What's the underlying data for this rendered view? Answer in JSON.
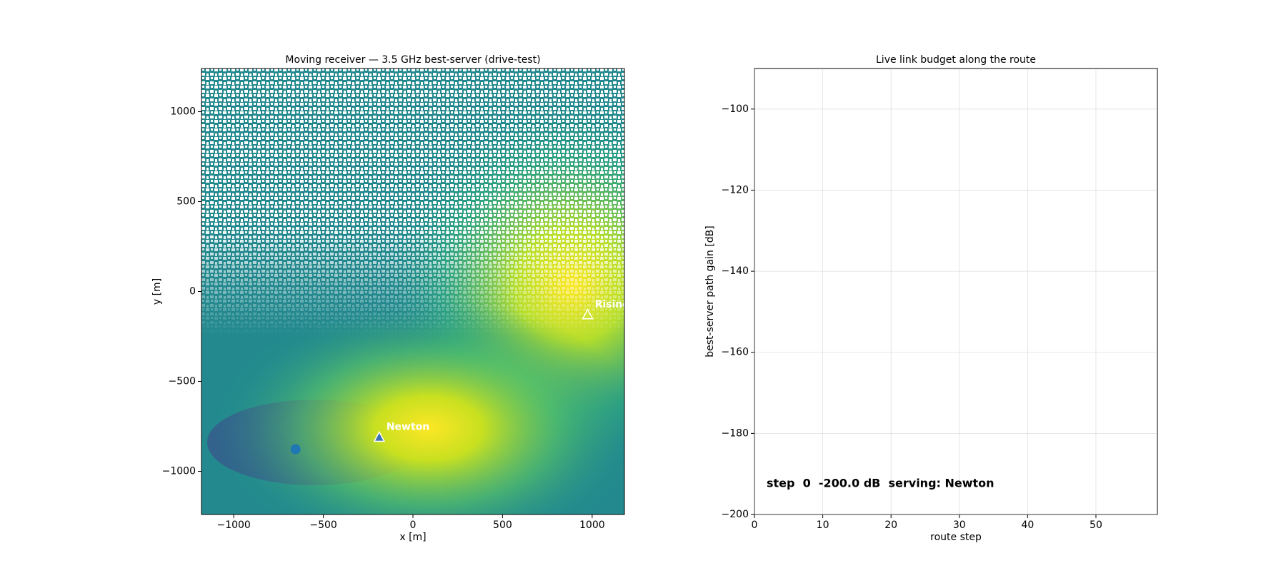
{
  "chart_data": [
    {
      "type": "heatmap",
      "title": "Moving receiver — 3.5 GHz best-server (drive-test)",
      "x_label": "x [m]",
      "y_label": "y [m]",
      "xlim": [
        -1180,
        1180
      ],
      "ylim": [
        -1240,
        1240
      ],
      "xticks": [
        {
          "value": -1000,
          "label": "−1000"
        },
        {
          "value": -500,
          "label": "−500"
        },
        0,
        500,
        1000
      ],
      "yticks": [
        {
          "value": -1000,
          "label": "−1000"
        },
        {
          "value": -500,
          "label": "−500"
        },
        0,
        500,
        1000
      ],
      "transmitters": [
        {
          "name": "Newton",
          "x": -188,
          "y": -813
        },
        {
          "name": "Rising",
          "x": 975,
          "y": -132
        }
      ],
      "receiver": {
        "x": -655,
        "y": -877,
        "color": "#1f77b4"
      }
    },
    {
      "type": "line",
      "title": "Live link budget along the route",
      "x_label": "route step",
      "y_label": "best-server path gain [dB]",
      "xlim": [
        0,
        59
      ],
      "ylim": [
        -200,
        -90
      ],
      "xticks": [
        0,
        10,
        20,
        30,
        40,
        50
      ],
      "yticks": [
        {
          "value": -200,
          "label": "−200"
        },
        {
          "value": -180,
          "label": "−180"
        },
        {
          "value": -160,
          "label": "−160"
        },
        {
          "value": -140,
          "label": "−140"
        },
        {
          "value": -120,
          "label": "−120"
        },
        {
          "value": -100,
          "label": "−100"
        }
      ],
      "grid": true,
      "annotation": "step  0  -200.0 dB  serving: Newton"
    }
  ]
}
